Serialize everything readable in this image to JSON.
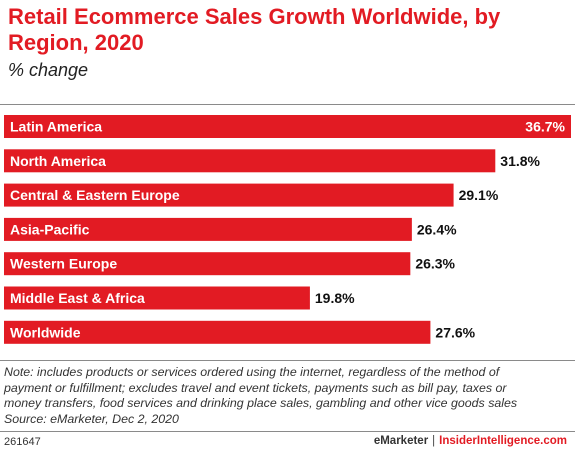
{
  "title": "Retail Ecommerce Sales Growth Worldwide, by Region, 2020",
  "subtitle": "% change",
  "colors": {
    "bar": "#e21b23",
    "title": "#e21b23",
    "bar_label": "#ffffff",
    "value_label": "#111111"
  },
  "chart_data": {
    "type": "bar",
    "orientation": "horizontal",
    "categories": [
      "Latin America",
      "North America",
      "Central & Eastern Europe",
      "Asia-Pacific",
      "Western Europe",
      "Middle East & Africa",
      "Worldwide"
    ],
    "values": [
      36.7,
      31.8,
      29.1,
      26.4,
      26.3,
      19.8,
      27.6
    ],
    "value_labels": [
      "36.7%",
      "31.8%",
      "29.1%",
      "26.4%",
      "26.3%",
      "19.8%",
      "27.6%"
    ],
    "xlim": [
      0,
      36.7
    ],
    "grid": false,
    "legend": "none"
  },
  "notes": {
    "lines": [
      "Note: includes products or services ordered using the internet, regardless of the method of",
      "payment or fulfillment; excludes travel and event tickets, payments such as bill pay, taxes or",
      "money transfers, food services and drinking place sales, gambling and other vice goods sales",
      "Source: eMarketer, Dec 2, 2020"
    ]
  },
  "footer": {
    "chart_id": "261647",
    "brand": "eMarketer",
    "separator": "|",
    "brand2": "InsiderIntelligence.com"
  }
}
